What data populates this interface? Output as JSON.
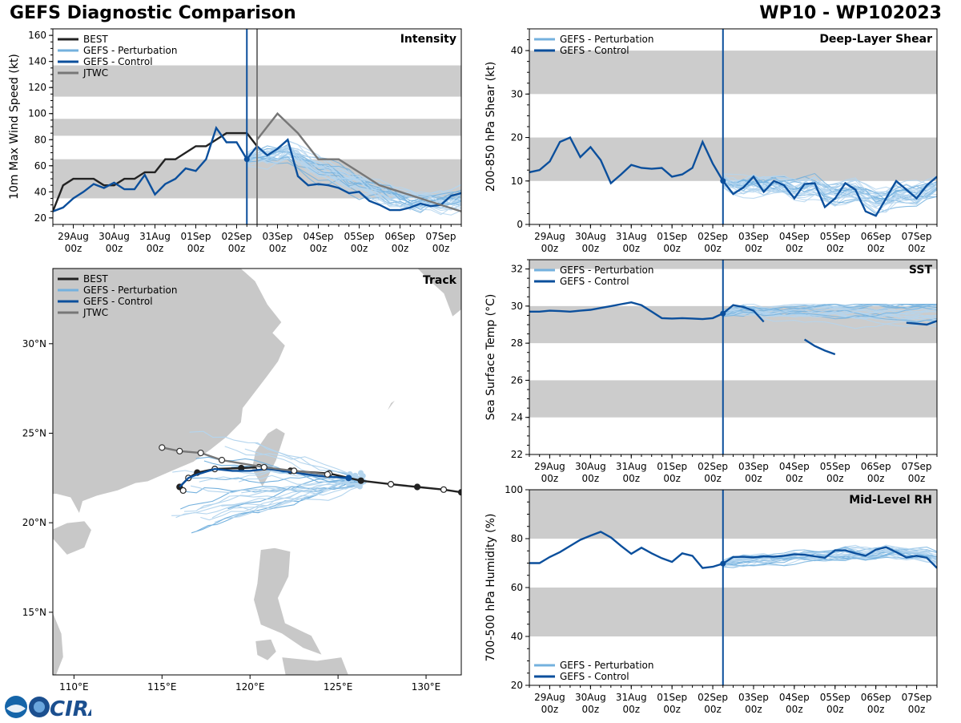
{
  "title": "GEFS Diagnostic Comparison",
  "storm_id": "WP10 - WP102023",
  "logo_text": "CIRA",
  "colors": {
    "best": "#222222",
    "perturbation": "#74b1de",
    "perturbation_light": "#b4d5ee",
    "control": "#0b4f9c",
    "jtwc": "#777777",
    "band": "#cccccc",
    "land": "#c8c8c8"
  },
  "time_ticks": [
    "29Aug\n00z",
    "30Aug\n00z",
    "31Aug\n00z",
    "01Sep\n00z",
    "02Sep\n00z",
    "03Sep\n00z",
    "04Sep\n00z",
    "05Sep\n00z",
    "06Sep\n00z",
    "07Sep\n00z"
  ],
  "chart_data": [
    {
      "id": "intensity",
      "type": "line",
      "title": "Intensity",
      "ylabel": "10m Max Wind Speed (kt)",
      "x_unit": "days since 28Aug 00z",
      "xlim": [
        0.5,
        10.5
      ],
      "ylim": [
        15,
        165
      ],
      "yticks": [
        20,
        40,
        60,
        80,
        100,
        120,
        140,
        160
      ],
      "bands": [
        [
          35,
          65
        ],
        [
          83,
          96
        ],
        [
          113,
          137
        ]
      ],
      "init_line": 5.25,
      "jtwc_line": 5.5,
      "legend": [
        "BEST",
        "GEFS - Perturbation",
        "GEFS - Control",
        "JTWC"
      ],
      "series": [
        {
          "name": "BEST",
          "color_key": "best",
          "x": [
            0.5,
            0.75,
            1.0,
            1.25,
            1.5,
            1.75,
            2.0,
            2.25,
            2.5,
            2.75,
            3.0,
            3.25,
            3.5,
            3.75,
            4.0,
            4.25,
            4.5,
            4.75,
            5.0,
            5.25,
            5.5
          ],
          "y": [
            25,
            45,
            50,
            50,
            50,
            45,
            45,
            50,
            50,
            55,
            55,
            65,
            65,
            70,
            75,
            75,
            80,
            85,
            85,
            85,
            75
          ]
        },
        {
          "name": "GEFS - Control",
          "color_key": "control",
          "x": [
            0.5,
            0.75,
            1.0,
            1.25,
            1.5,
            1.75,
            2.0,
            2.25,
            2.5,
            2.75,
            3.0,
            3.25,
            3.5,
            3.75,
            4.0,
            4.25,
            4.5,
            4.75,
            5.0,
            5.25,
            5.5,
            5.75,
            6.0,
            6.25,
            6.5,
            6.75,
            7.0,
            7.25,
            7.5,
            7.75,
            8.0,
            8.25,
            8.5,
            8.75,
            9.0,
            9.25,
            9.5,
            9.75,
            10.0,
            10.25,
            10.5
          ],
          "y": [
            25,
            28,
            35,
            40,
            46,
            43,
            47,
            42,
            42,
            53,
            38,
            46,
            50,
            58,
            56,
            65,
            89,
            78,
            78,
            65,
            75,
            68,
            73,
            80,
            52,
            45,
            46,
            45,
            43,
            39,
            40,
            33,
            30,
            26,
            26,
            28,
            31,
            29,
            30,
            37,
            39
          ]
        },
        {
          "name": "JTWC",
          "color_key": "jtwc",
          "x": [
            5.5,
            6.0,
            6.5,
            7.0,
            7.5,
            8.0,
            8.5,
            9.0,
            9.5,
            10.0,
            10.5
          ],
          "y": [
            80,
            100,
            85,
            65,
            65,
            55,
            45,
            40,
            35,
            30,
            25
          ]
        }
      ],
      "perturbation_members": 30,
      "ensemble_range": [
        20,
        100
      ]
    },
    {
      "id": "shear",
      "type": "line",
      "title": "Deep-Layer Shear",
      "ylabel": "200-850 hPa Shear (kt)",
      "x_unit": "days since 28Aug 00z",
      "xlim": [
        0.5,
        10.5
      ],
      "ylim": [
        0,
        45
      ],
      "yticks": [
        0,
        10,
        20,
        30,
        40
      ],
      "bands": [
        [
          10,
          20
        ],
        [
          30,
          40
        ]
      ],
      "init_line": 5.25,
      "legend": [
        "GEFS - Perturbation",
        "GEFS - Control"
      ],
      "series": [
        {
          "name": "GEFS - Control",
          "color_key": "control",
          "x": [
            0.5,
            0.75,
            1.0,
            1.25,
            1.5,
            1.75,
            2.0,
            2.25,
            2.5,
            2.75,
            3.0,
            3.25,
            3.5,
            3.75,
            4.0,
            4.25,
            4.5,
            4.75,
            5.0,
            5.25,
            5.5,
            5.75,
            6.0,
            6.25,
            6.5,
            6.75,
            7.0,
            7.25,
            7.5,
            7.75,
            8.0,
            8.25,
            8.5,
            8.75,
            9.0,
            9.25,
            9.5,
            9.75,
            10.0,
            10.25,
            10.5
          ],
          "y": [
            12,
            12.5,
            14.5,
            19,
            20,
            15.5,
            17.8,
            14.8,
            9.5,
            11.5,
            13.7,
            13,
            12.8,
            13,
            11,
            11.5,
            13,
            19,
            14,
            10,
            7,
            8.5,
            11,
            7.5,
            10,
            9,
            6,
            9.3,
            9.5,
            4,
            6,
            9.5,
            8,
            3,
            2,
            6,
            10,
            8,
            6,
            9,
            11
          ]
        }
      ],
      "perturbation_members": 30,
      "ensemble_range": [
        1,
        25
      ]
    },
    {
      "id": "sst",
      "type": "line",
      "title": "SST",
      "ylabel": "Sea Surface Temp (°C)",
      "x_unit": "days since 28Aug 00z",
      "xlim": [
        0.5,
        10.5
      ],
      "ylim": [
        22,
        32.5
      ],
      "yticks": [
        22,
        24,
        26,
        28,
        30,
        32
      ],
      "bands": [
        [
          24,
          26
        ],
        [
          28,
          30
        ],
        [
          32,
          32.5
        ]
      ],
      "init_line": 5.25,
      "legend": [
        "GEFS - Perturbation",
        "GEFS - Control"
      ],
      "series": [
        {
          "name": "GEFS - Control",
          "color_key": "control",
          "x": [
            0.5,
            0.75,
            1.0,
            1.25,
            1.5,
            1.75,
            2.0,
            2.25,
            2.5,
            2.75,
            3.0,
            3.25,
            3.5,
            3.75,
            4.0,
            4.25,
            4.5,
            4.75,
            5.0,
            5.25,
            5.5,
            5.75,
            6.0,
            6.25,
            6.5
          ],
          "y": [
            29.7,
            29.7,
            29.75,
            29.73,
            29.7,
            29.75,
            29.8,
            29.9,
            30.0,
            30.1,
            30.2,
            30.05,
            29.7,
            29.35,
            29.33,
            29.35,
            29.33,
            29.3,
            29.35,
            29.6,
            30.05,
            29.95,
            29.75,
            29.15,
            null
          ]
        },
        {
          "name": "GEFS - Control segment 2",
          "color_key": "control",
          "x": [
            7.25,
            7.5,
            7.75,
            8.0
          ],
          "y": [
            28.2,
            27.85,
            27.6,
            27.4
          ]
        },
        {
          "name": "GEFS - Control segment 3",
          "color_key": "control",
          "x": [
            9.75,
            10.0,
            10.25,
            10.5
          ],
          "y": [
            29.1,
            29.05,
            29.0,
            29.2
          ]
        }
      ],
      "perturbation_members": 25,
      "ensemble_range": [
        27.3,
        30.1
      ]
    },
    {
      "id": "rh",
      "type": "line",
      "title": "Mid-Level RH",
      "ylabel": "700-500 hPa Humidity (%)",
      "x_unit": "days since 28Aug 00z",
      "xlim": [
        0.5,
        10.5
      ],
      "ylim": [
        20,
        100
      ],
      "yticks": [
        20,
        40,
        60,
        80,
        100
      ],
      "bands": [
        [
          40,
          60
        ],
        [
          80,
          100
        ]
      ],
      "init_line": 5.25,
      "legend": [
        "GEFS - Perturbation",
        "GEFS - Control"
      ],
      "series": [
        {
          "name": "GEFS - Control",
          "color_key": "control",
          "x": [
            0.5,
            0.75,
            1.0,
            1.25,
            1.5,
            1.75,
            2.0,
            2.25,
            2.5,
            2.75,
            3.0,
            3.25,
            3.5,
            3.75,
            4.0,
            4.25,
            4.5,
            4.75,
            5.0,
            5.25,
            5.5,
            5.75,
            6.0,
            6.25,
            6.5,
            6.75,
            7.0,
            7.25,
            7.5,
            7.75,
            8.0,
            8.25,
            8.5,
            8.75,
            9.0,
            9.25,
            9.5,
            9.75,
            10.0,
            10.25,
            10.5
          ],
          "y": [
            70,
            70,
            72.5,
            74.5,
            77,
            79.5,
            81.2,
            82.8,
            80.5,
            77,
            73.8,
            76.3,
            74,
            72,
            70.5,
            74,
            73,
            68,
            68.5,
            69.8,
            72.5,
            72.6,
            72.3,
            72.8,
            72.6,
            73,
            73.6,
            73.4,
            72.8,
            72.2,
            75.2,
            75.2,
            74,
            73,
            75.5,
            76.5,
            74.5,
            72.3,
            73,
            72.2,
            68
          ]
        }
      ],
      "perturbation_members": 25,
      "ensemble_range": [
        58,
        82
      ]
    },
    {
      "id": "track",
      "type": "scatter",
      "title": "Track",
      "xlim": [
        108.8,
        132
      ],
      "ylim": [
        11.5,
        34.2
      ],
      "xticks": [
        {
          "v": 110,
          "label": "110°E"
        },
        {
          "v": 115,
          "label": "115°E"
        },
        {
          "v": 120,
          "label": "120°E"
        },
        {
          "v": 125,
          "label": "125°E"
        },
        {
          "v": 130,
          "label": "130°E"
        }
      ],
      "yticks": [
        {
          "v": 15,
          "label": "15°N"
        },
        {
          "v": 20,
          "label": "20°N"
        },
        {
          "v": 25,
          "label": "25°N"
        },
        {
          "v": 30,
          "label": "30°N"
        }
      ],
      "legend": [
        "BEST",
        "GEFS - Perturbation",
        "GEFS - Control",
        "JTWC"
      ],
      "series": [
        {
          "name": "BEST",
          "color_key": "best",
          "lon": [
            132,
            131,
            129.5,
            128,
            126.3,
            124.5,
            122.3,
            120.5,
            119.5,
            118,
            117,
            116.5,
            116,
            116.2
          ],
          "lat": [
            21.7,
            21.85,
            22.0,
            22.15,
            22.35,
            22.75,
            22.9,
            23.1,
            23.05,
            23.0,
            22.8,
            22.5,
            22.0,
            21.8
          ]
        },
        {
          "name": "GEFS - Control",
          "color_key": "control",
          "lon": [
            125.6,
            124,
            122.5,
            121,
            120,
            119,
            118,
            117,
            116.5,
            116
          ],
          "lat": [
            22.5,
            22.6,
            22.8,
            23.0,
            22.9,
            22.9,
            23.0,
            22.7,
            22.5,
            22.0
          ]
        },
        {
          "name": "JTWC",
          "color_key": "jtwc",
          "lon": [
            124.4,
            122.5,
            120.8,
            118.4,
            117.2,
            116.0,
            115.0
          ],
          "lat": [
            22.7,
            22.9,
            23.1,
            23.5,
            23.9,
            24.0,
            24.2
          ]
        }
      ]
    }
  ]
}
